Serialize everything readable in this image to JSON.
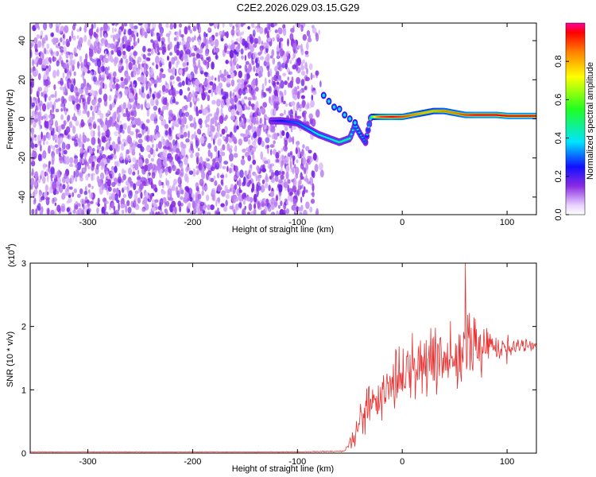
{
  "title": "C2E2.2026.029.03.15.G29",
  "chart_data": [
    {
      "type": "heatmap",
      "title": "C2E2.2026.029.03.15.G29",
      "xlabel": "Height of straight line (km)",
      "ylabel": "Frequency (Hz)",
      "xlim": [
        -355,
        128
      ],
      "ylim": [
        -49,
        49
      ],
      "xticks": [
        -300,
        -200,
        -100,
        0,
        100
      ],
      "xtick_labels": [
        "-300",
        "-200",
        "-100",
        "0",
        "100"
      ],
      "yticks": [
        -40,
        -20,
        0,
        20,
        40
      ],
      "ytick_labels": [
        "-40",
        "-20",
        "0",
        "20",
        "40"
      ],
      "colorbar": {
        "label": "Normalized spectral amplitude",
        "range": [
          0,
          1
        ],
        "ticks": [
          0.0,
          0.2,
          0.4,
          0.6,
          0.8
        ],
        "tick_labels": [
          "0.0",
          "0.2",
          "0.4",
          "0.6",
          "0.8"
        ]
      },
      "noise_region": {
        "x_range": [
          -355,
          -80
        ],
        "y_range": [
          -49,
          49
        ],
        "amplitude": "low (0.0–0.15)"
      },
      "signal_track": {
        "x": [
          -125,
          -115,
          -100,
          -90,
          -80,
          -70,
          -60,
          -50,
          -45,
          -40,
          -35,
          -30,
          -25,
          -20,
          -10,
          0,
          10,
          20,
          30,
          40,
          50,
          60,
          70,
          80,
          90,
          100,
          110,
          120,
          128
        ],
        "y": [
          -1,
          -1,
          -2,
          -5,
          -8,
          -10,
          -12,
          -10,
          -3,
          -8,
          -12,
          1,
          1,
          1,
          1,
          1,
          2,
          3,
          4,
          4,
          3,
          2,
          2,
          2,
          2,
          1.5,
          1.5,
          1.5,
          1.5
        ],
        "amplitude": [
          0.2,
          0.25,
          0.3,
          0.35,
          0.4,
          0.4,
          0.45,
          0.45,
          0.4,
          0.35,
          0.3,
          0.5,
          0.8,
          0.9,
          0.95,
          0.9,
          0.85,
          0.8,
          0.8,
          0.85,
          0.85,
          0.9,
          0.95,
          0.95,
          0.95,
          0.95,
          0.95,
          0.95,
          0.95
        ]
      }
    },
    {
      "type": "line",
      "xlabel": "Height of straight line (km)",
      "ylabel": "SNR (10 * v/v)",
      "y_multiplier_label": "(x10",
      "y_multiplier_exp": "4",
      "xlim": [
        -355,
        128
      ],
      "ylim": [
        0,
        3
      ],
      "xticks": [
        -300,
        -200,
        -100,
        0,
        100
      ],
      "xtick_labels": [
        "-300",
        "-200",
        "-100",
        "0",
        "100"
      ],
      "yticks": [
        0,
        1,
        2,
        3
      ],
      "ytick_labels": [
        "0",
        "1",
        "2",
        "3"
      ],
      "series_color": "#e83030",
      "envelope": {
        "x": [
          -355,
          -100,
          -55,
          -45,
          -40,
          -30,
          -25,
          -20,
          -10,
          0,
          20,
          40,
          60,
          70,
          80,
          90,
          100,
          110,
          128
        ],
        "mean": [
          0.02,
          0.02,
          0.03,
          0.3,
          0.55,
          0.7,
          0.8,
          0.95,
          1.1,
          1.3,
          1.45,
          1.5,
          1.6,
          1.65,
          1.7,
          1.7,
          1.65,
          1.7,
          1.7
        ],
        "spread": [
          0.005,
          0.005,
          0.01,
          0.25,
          0.35,
          0.4,
          0.4,
          0.45,
          0.5,
          0.6,
          0.6,
          0.55,
          0.6,
          0.6,
          0.5,
          0.3,
          0.25,
          0.12,
          0.08
        ],
        "max": 3.0
      }
    }
  ]
}
